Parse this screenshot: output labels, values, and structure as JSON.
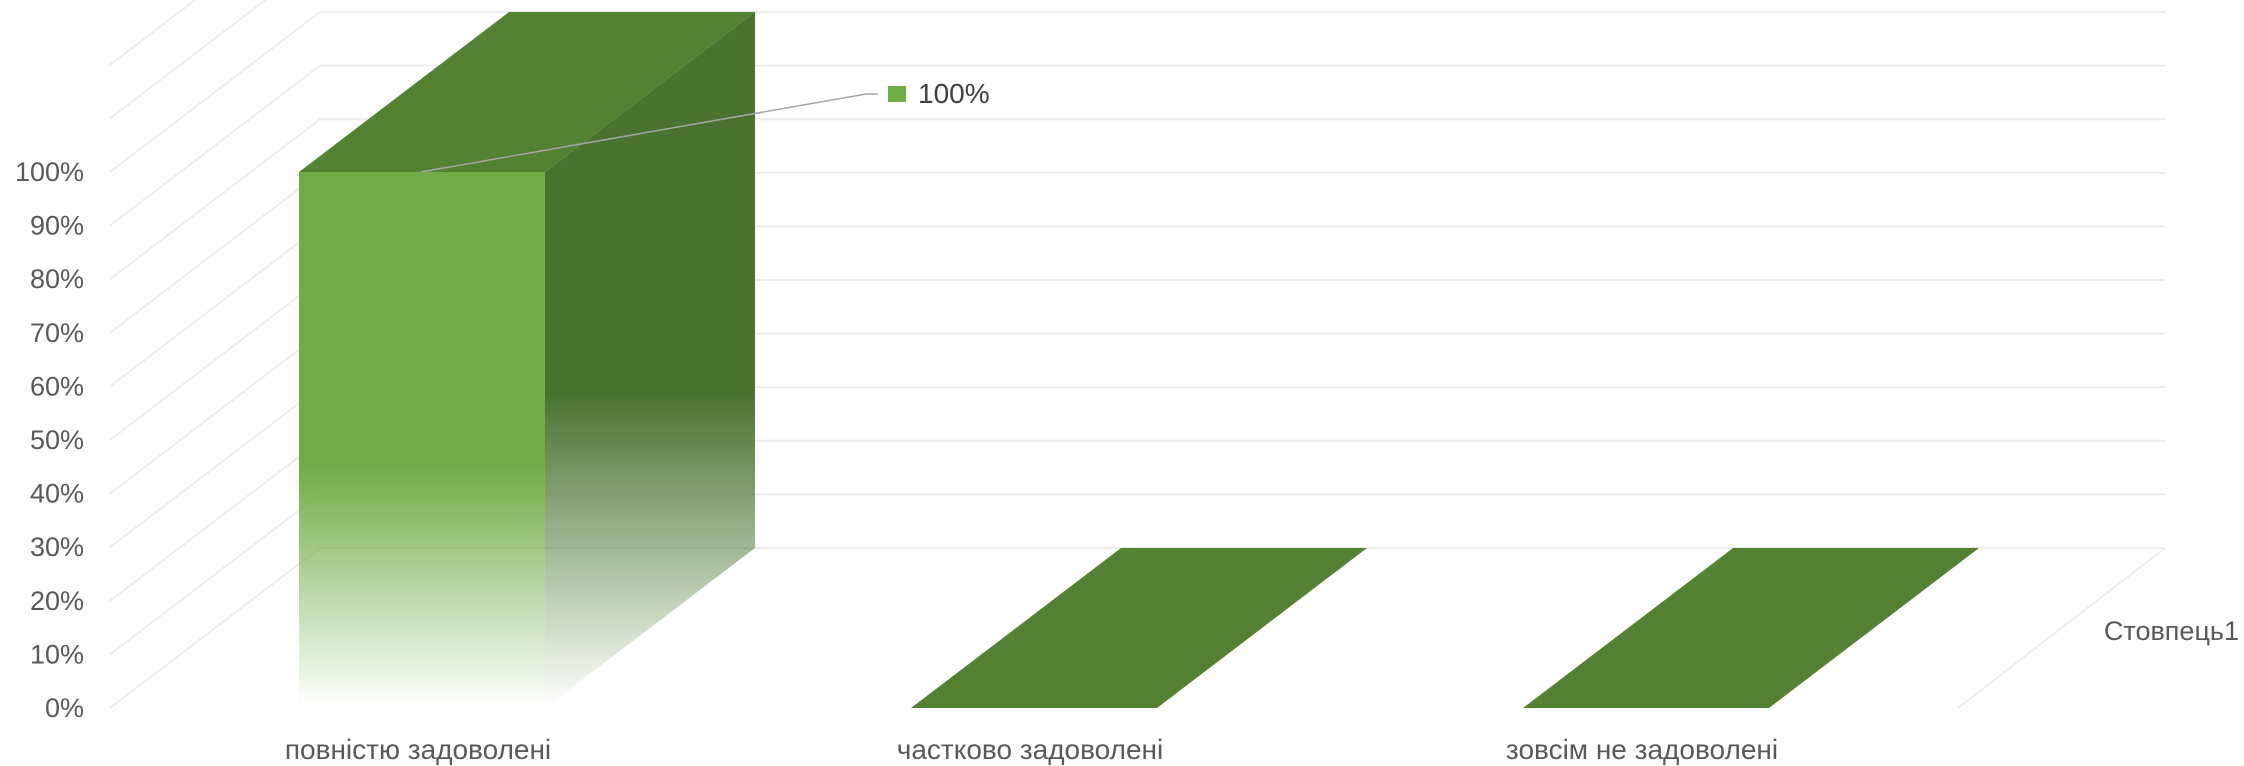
{
  "chart_data": {
    "type": "bar",
    "style": "3d-column",
    "categories": [
      "повністю задоволені",
      "частково задоволені",
      "зовсім не задоволені"
    ],
    "series": [
      {
        "name": "Стовпець1",
        "values": [
          100,
          0,
          0
        ]
      }
    ],
    "data_labels": [
      {
        "category_index": 0,
        "text": "100%"
      }
    ],
    "y_ticks": [
      "0%",
      "10%",
      "20%",
      "30%",
      "40%",
      "50%",
      "60%",
      "70%",
      "80%",
      "90%",
      "100%"
    ],
    "ylim": [
      0,
      100
    ],
    "grid": true,
    "colors": {
      "bar_front": "#70ad47",
      "bar_top": "#548235",
      "bar_side": "#4a7330",
      "gridline": "#ececec",
      "text": "#595959",
      "leader_line": "#a6a6a6"
    }
  }
}
